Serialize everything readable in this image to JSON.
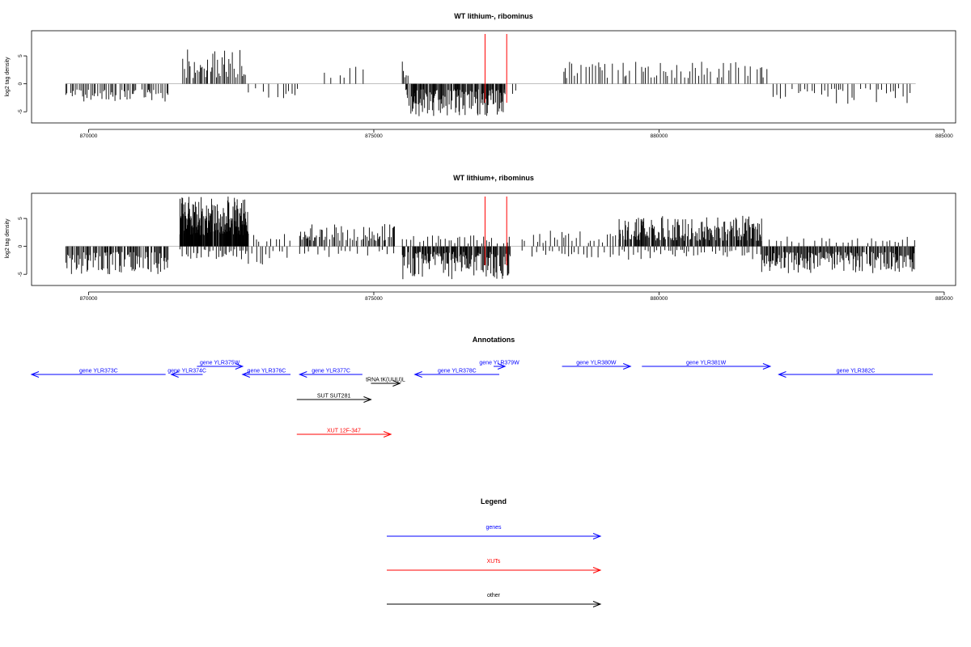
{
  "chart_data": [
    {
      "type": "bar",
      "title": "WT lithium-, ribominus",
      "ylabel": "log2 tag density",
      "xlim": [
        869000,
        885200
      ],
      "ylim": [
        -7,
        9.5
      ],
      "xticks": [
        870000,
        875000,
        880000,
        885000
      ],
      "yticks": [
        -5,
        0,
        5
      ],
      "marker_lines": {
        "color": "#ff0000",
        "x": [
          876950,
          877330
        ]
      },
      "seed": 7,
      "regions": [
        {
          "from": 869600,
          "to": 871400,
          "dir": -1,
          "min": 1.0,
          "max": 3.2,
          "step": 30
        },
        {
          "from": 871650,
          "to": 872750,
          "dir": 1,
          "min": 1.0,
          "max": 6.2,
          "step": 24
        },
        {
          "from": 872800,
          "to": 873700,
          "dir": -1,
          "min": 0.8,
          "max": 2.8,
          "step": 80
        },
        {
          "from": 874050,
          "to": 874900,
          "dir": 1,
          "min": 1.0,
          "max": 3.4,
          "step": 110
        },
        {
          "from": 875500,
          "to": 875600,
          "dir": 1,
          "min": 1.0,
          "max": 5.2,
          "step": 25
        },
        {
          "from": 875550,
          "to": 877300,
          "dir": -1,
          "min": 1.0,
          "max": 5.8,
          "step": 12
        },
        {
          "from": 877300,
          "to": 877500,
          "dir": -1,
          "min": 1.0,
          "max": 2.5,
          "step": 80
        },
        {
          "from": 878300,
          "to": 881900,
          "dir": 1,
          "min": 1.0,
          "max": 4.0,
          "step": 45
        },
        {
          "from": 882000,
          "to": 884500,
          "dir": -1,
          "min": 0.8,
          "max": 3.6,
          "step": 60
        }
      ]
    },
    {
      "type": "bar",
      "title": "WT lithium+, ribominus",
      "ylabel": "log2 tag density",
      "xlim": [
        869000,
        885200
      ],
      "ylim": [
        -7,
        9.5
      ],
      "xticks": [
        870000,
        875000,
        880000,
        885000
      ],
      "yticks": [
        -5,
        0,
        5
      ],
      "marker_lines": {
        "color": "#ff0000",
        "x": [
          876950,
          877330
        ]
      },
      "seed": 19,
      "regions": [
        {
          "from": 869600,
          "to": 871400,
          "dir": -1,
          "min": 1.0,
          "max": 5.0,
          "step": 18
        },
        {
          "from": 871600,
          "to": 872800,
          "dir": 1,
          "min": 2.0,
          "max": 9.0,
          "step": 6
        },
        {
          "from": 871600,
          "to": 872800,
          "dir": -1,
          "min": 0.5,
          "max": 2.5,
          "step": 40
        },
        {
          "from": 872800,
          "to": 873600,
          "dir": 1,
          "min": 0.8,
          "max": 2.5,
          "step": 70
        },
        {
          "from": 872800,
          "to": 873600,
          "dir": -1,
          "min": 0.8,
          "max": 3.5,
          "step": 60
        },
        {
          "from": 873700,
          "to": 875400,
          "dir": 1,
          "min": 1.0,
          "max": 4.0,
          "step": 20
        },
        {
          "from": 873700,
          "to": 875400,
          "dir": -1,
          "min": 0.6,
          "max": 2.0,
          "step": 90
        },
        {
          "from": 875500,
          "to": 877400,
          "dir": -1,
          "min": 1.0,
          "max": 6.0,
          "step": 12
        },
        {
          "from": 875500,
          "to": 877400,
          "dir": 1,
          "min": 0.5,
          "max": 2.0,
          "step": 60
        },
        {
          "from": 877600,
          "to": 879300,
          "dir": 1,
          "min": 0.6,
          "max": 2.8,
          "step": 60
        },
        {
          "from": 877600,
          "to": 879300,
          "dir": -1,
          "min": 0.6,
          "max": 2.2,
          "step": 80
        },
        {
          "from": 879300,
          "to": 881800,
          "dir": 1,
          "min": 1.0,
          "max": 5.5,
          "step": 12
        },
        {
          "from": 879300,
          "to": 881800,
          "dir": -1,
          "min": 0.6,
          "max": 2.4,
          "step": 50
        },
        {
          "from": 881800,
          "to": 884500,
          "dir": 1,
          "min": 0.5,
          "max": 1.8,
          "step": 90
        },
        {
          "from": 881800,
          "to": 884500,
          "dir": -1,
          "min": 1.0,
          "max": 4.8,
          "step": 15
        }
      ]
    }
  ],
  "annotations": {
    "title": "Annotations",
    "items": [
      {
        "label": "gene YLR373C",
        "start": 869000,
        "end": 871350,
        "strand": "-",
        "color": "#0000ff",
        "row": 1
      },
      {
        "label": "gene YLR374C",
        "start": 871450,
        "end": 872000,
        "strand": "-",
        "color": "#0000ff",
        "row": 1
      },
      {
        "label": "gene YLR375W",
        "start": 871900,
        "end": 872700,
        "strand": "+",
        "color": "#0000ff",
        "row": 0
      },
      {
        "label": "gene YLR376C",
        "start": 872700,
        "end": 873540,
        "strand": "-",
        "color": "#0000ff",
        "row": 1
      },
      {
        "label": "gene YLR377C",
        "start": 873700,
        "end": 874800,
        "strand": "-",
        "color": "#0000ff",
        "row": 1
      },
      {
        "label": "tRNA tK(UUU)L",
        "start": 874950,
        "end": 875460,
        "strand": "+",
        "color": "#000000",
        "row": 2
      },
      {
        "label": "gene YLR378C",
        "start": 875720,
        "end": 877200,
        "strand": "-",
        "color": "#0000ff",
        "row": 1
      },
      {
        "label": "gene YLR379W",
        "start": 877100,
        "end": 877300,
        "strand": "+",
        "color": "#0000ff",
        "row": 0
      },
      {
        "label": "gene YLR380W",
        "start": 878300,
        "end": 879500,
        "strand": "+",
        "color": "#0000ff",
        "row": 0
      },
      {
        "label": "gene YLR381W",
        "start": 879700,
        "end": 881950,
        "strand": "+",
        "color": "#0000ff",
        "row": 0
      },
      {
        "label": "gene YLR382C",
        "start": 882100,
        "end": 884800,
        "strand": "-",
        "color": "#0000ff",
        "row": 1
      },
      {
        "label": "SUT SUT281",
        "start": 873650,
        "end": 874950,
        "strand": "+",
        "color": "#000000",
        "row": 3
      },
      {
        "label": "XUT 12F-347",
        "start": 873650,
        "end": 875300,
        "strand": "+",
        "color": "#ff0000",
        "row": 4
      }
    ]
  },
  "legend": {
    "title": "Legend",
    "items": [
      {
        "label": "genes",
        "color": "#0000ff"
      },
      {
        "label": "XUTs",
        "color": "#ff0000"
      },
      {
        "label": "other",
        "color": "#000000"
      }
    ]
  }
}
